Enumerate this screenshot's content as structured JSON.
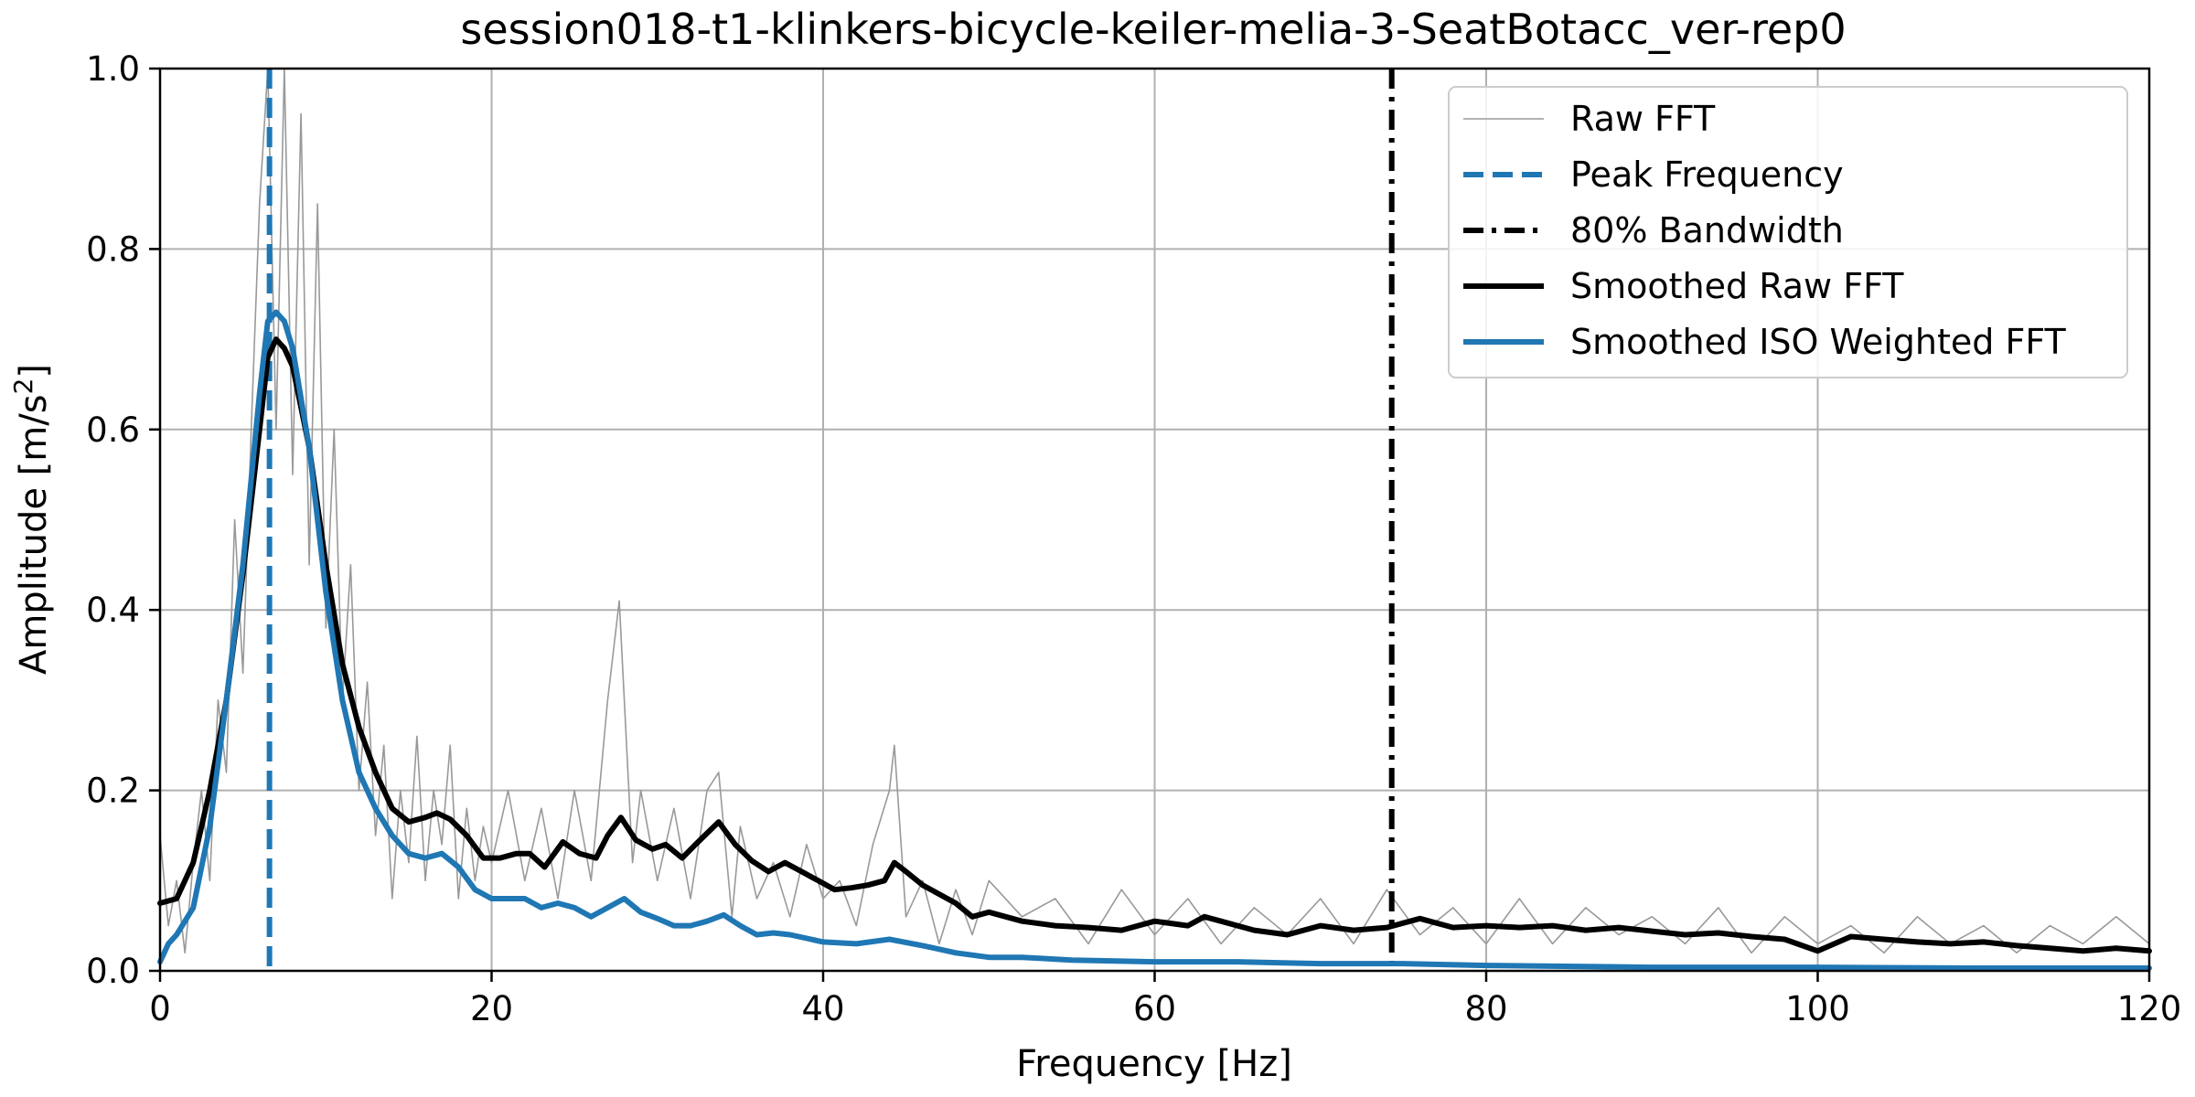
{
  "chart_data": {
    "type": "line",
    "title": "session018-t1-klinkers-bicycle-keiler-melia-3-SeatBotacc_ver-rep0",
    "xlabel": "Frequency [Hz]",
    "ylabel_main": "Amplitude [m/s",
    "ylabel_sup": "2",
    "ylabel_end": "]",
    "xlim": [
      0,
      120
    ],
    "ylim": [
      0,
      1.0
    ],
    "x_ticks": [
      0,
      20,
      40,
      60,
      80,
      100,
      120
    ],
    "x_tick_labels": [
      "0",
      "20",
      "40",
      "60",
      "80",
      "100",
      "120"
    ],
    "y_ticks": [
      0,
      0.2,
      0.4,
      0.6,
      0.8,
      1.0
    ],
    "y_tick_labels": [
      "0.0",
      "0.2",
      "0.4",
      "0.6",
      "0.8",
      "1.0"
    ],
    "grid": true,
    "legend_position": "top-right",
    "colors": {
      "raw": "#999999",
      "peak": "#1f77b4",
      "bandwidth": "#000000",
      "smoothed_raw": "#000000",
      "smoothed_iso": "#1f77b4",
      "grid": "#b0b0b0"
    },
    "peak_frequency": 6.6,
    "bandwidth_80": 74.3,
    "series": [
      {
        "name": "Raw FFT",
        "style": "thin-gray",
        "x": [
          0,
          0.5,
          1,
          1.5,
          2,
          2.5,
          3,
          3.5,
          4,
          4.5,
          5,
          5.5,
          6,
          6.5,
          7,
          7.5,
          8,
          8.5,
          9,
          9.5,
          10,
          10.5,
          11,
          11.5,
          12,
          12.5,
          13,
          13.5,
          14,
          14.5,
          15,
          15.5,
          16,
          16.5,
          17,
          17.5,
          18,
          18.5,
          19,
          19.5,
          20,
          21,
          22,
          23,
          24,
          25,
          26,
          27,
          27.7,
          28.5,
          29,
          30,
          31,
          32,
          33,
          33.7,
          34.5,
          35,
          36,
          37,
          38,
          39,
          40,
          41,
          42,
          43,
          44,
          44.3,
          45,
          46,
          47,
          48,
          49,
          50,
          52,
          54,
          56,
          58,
          60,
          62,
          64,
          66,
          68,
          70,
          72,
          74,
          76,
          78,
          80,
          82,
          84,
          86,
          88,
          90,
          92,
          94,
          96,
          98,
          100,
          102,
          104,
          106,
          108,
          110,
          112,
          114,
          116,
          118,
          120
        ],
        "y": [
          0.15,
          0.05,
          0.1,
          0.02,
          0.12,
          0.2,
          0.1,
          0.3,
          0.22,
          0.5,
          0.33,
          0.6,
          0.85,
          1.0,
          0.6,
          1.0,
          0.55,
          0.95,
          0.45,
          0.85,
          0.38,
          0.6,
          0.3,
          0.45,
          0.2,
          0.32,
          0.15,
          0.25,
          0.08,
          0.2,
          0.12,
          0.26,
          0.1,
          0.2,
          0.14,
          0.25,
          0.08,
          0.18,
          0.1,
          0.16,
          0.12,
          0.2,
          0.1,
          0.18,
          0.08,
          0.2,
          0.1,
          0.3,
          0.41,
          0.12,
          0.2,
          0.1,
          0.18,
          0.08,
          0.2,
          0.22,
          0.06,
          0.16,
          0.08,
          0.12,
          0.06,
          0.14,
          0.08,
          0.1,
          0.05,
          0.14,
          0.2,
          0.25,
          0.06,
          0.1,
          0.03,
          0.09,
          0.04,
          0.1,
          0.06,
          0.08,
          0.03,
          0.09,
          0.04,
          0.08,
          0.03,
          0.07,
          0.04,
          0.08,
          0.03,
          0.09,
          0.04,
          0.07,
          0.03,
          0.08,
          0.03,
          0.07,
          0.04,
          0.06,
          0.03,
          0.07,
          0.02,
          0.06,
          0.03,
          0.05,
          0.02,
          0.06,
          0.03,
          0.05,
          0.02,
          0.05,
          0.03,
          0.06,
          0.03
        ]
      },
      {
        "name": "Smoothed Raw FFT",
        "style": "thick-black",
        "x": [
          0,
          1,
          2,
          3,
          4,
          5,
          6,
          6.5,
          7,
          7.5,
          8,
          9,
          10,
          11,
          12,
          13,
          14,
          15,
          16,
          16.7,
          17.5,
          18.5,
          19.5,
          20.5,
          21.5,
          22.3,
          23.2,
          24.3,
          25.3,
          26.3,
          27,
          27.8,
          28.7,
          29.7,
          30.5,
          31.5,
          32.3,
          33.7,
          34.7,
          35.7,
          36.7,
          37.7,
          38.7,
          39.7,
          40.7,
          41.7,
          42.7,
          43.7,
          44.3,
          45,
          46,
          47,
          48,
          49,
          50,
          52,
          54,
          56,
          58,
          60,
          62,
          63,
          64,
          66,
          68,
          70,
          72,
          74,
          76,
          78,
          80,
          82,
          84,
          86,
          88,
          90,
          92,
          94,
          96,
          98,
          100,
          102,
          104,
          106,
          108,
          110,
          112,
          114,
          116,
          118,
          120
        ],
        "y": [
          0.075,
          0.08,
          0.12,
          0.2,
          0.3,
          0.44,
          0.6,
          0.68,
          0.7,
          0.69,
          0.67,
          0.58,
          0.45,
          0.34,
          0.27,
          0.22,
          0.18,
          0.165,
          0.17,
          0.175,
          0.168,
          0.15,
          0.125,
          0.125,
          0.13,
          0.13,
          0.115,
          0.143,
          0.13,
          0.125,
          0.15,
          0.17,
          0.145,
          0.135,
          0.14,
          0.125,
          0.14,
          0.165,
          0.14,
          0.122,
          0.11,
          0.12,
          0.11,
          0.1,
          0.09,
          0.092,
          0.095,
          0.1,
          0.12,
          0.11,
          0.095,
          0.085,
          0.075,
          0.06,
          0.065,
          0.055,
          0.05,
          0.048,
          0.045,
          0.055,
          0.05,
          0.06,
          0.055,
          0.045,
          0.04,
          0.05,
          0.045,
          0.048,
          0.058,
          0.048,
          0.05,
          0.048,
          0.05,
          0.045,
          0.048,
          0.044,
          0.04,
          0.042,
          0.038,
          0.035,
          0.022,
          0.038,
          0.035,
          0.032,
          0.03,
          0.032,
          0.028,
          0.025,
          0.022,
          0.025,
          0.022
        ]
      },
      {
        "name": "Smoothed ISO Weighted FFT",
        "style": "thick-blue",
        "x": [
          0,
          0.5,
          1,
          2,
          3,
          4,
          5,
          6,
          6.5,
          7,
          7.5,
          8,
          9,
          10,
          11,
          12,
          13,
          14,
          15,
          16,
          17,
          18,
          19,
          20,
          21,
          22,
          23,
          24,
          25,
          26,
          27,
          28,
          29,
          30,
          31,
          32,
          33,
          34,
          35,
          36,
          37,
          38,
          40,
          42,
          44,
          46,
          48,
          50,
          52,
          55,
          60,
          65,
          70,
          75,
          80,
          90,
          100,
          110,
          120
        ],
        "y": [
          0.01,
          0.03,
          0.04,
          0.07,
          0.16,
          0.3,
          0.45,
          0.64,
          0.72,
          0.73,
          0.72,
          0.69,
          0.58,
          0.42,
          0.3,
          0.22,
          0.18,
          0.15,
          0.13,
          0.125,
          0.13,
          0.115,
          0.09,
          0.08,
          0.08,
          0.08,
          0.07,
          0.075,
          0.07,
          0.06,
          0.07,
          0.08,
          0.065,
          0.058,
          0.05,
          0.05,
          0.055,
          0.062,
          0.05,
          0.04,
          0.042,
          0.04,
          0.032,
          0.03,
          0.035,
          0.028,
          0.02,
          0.015,
          0.015,
          0.012,
          0.01,
          0.01,
          0.008,
          0.008,
          0.006,
          0.004,
          0.004,
          0.003,
          0.003
        ]
      }
    ],
    "legend": [
      {
        "label": "Raw FFT",
        "style": "thin-gray"
      },
      {
        "label": "Peak Frequency",
        "style": "dashed-blue"
      },
      {
        "label": "80% Bandwidth",
        "style": "dashdot-black"
      },
      {
        "label": "Smoothed Raw FFT",
        "style": "thick-black"
      },
      {
        "label": "Smoothed ISO Weighted FFT",
        "style": "thick-blue"
      }
    ]
  }
}
